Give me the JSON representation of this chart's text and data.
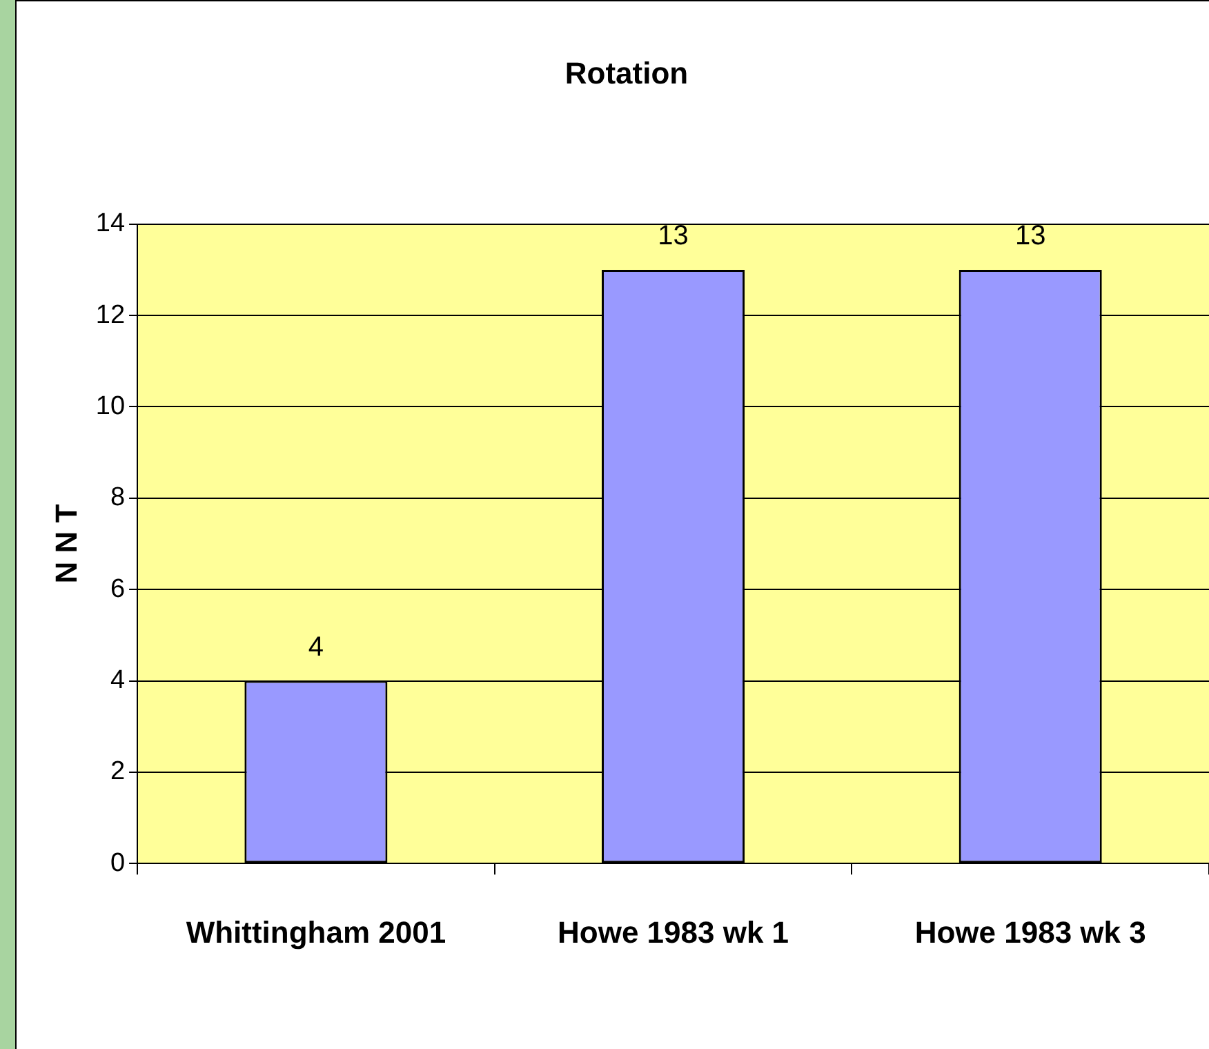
{
  "chart_data": {
    "type": "bar",
    "title": "Rotation",
    "ylabel": "N N T",
    "categories": [
      "Whittingham 2001",
      "Howe 1983 wk 1",
      "Howe 1983 wk 3"
    ],
    "values": [
      4,
      13,
      13
    ],
    "color": "#9999ff",
    "ylim": [
      0,
      14
    ],
    "yticks": [
      0,
      2,
      4,
      6,
      8,
      10,
      12,
      14
    ],
    "grid": "y",
    "data_labels": true,
    "legend": false
  }
}
